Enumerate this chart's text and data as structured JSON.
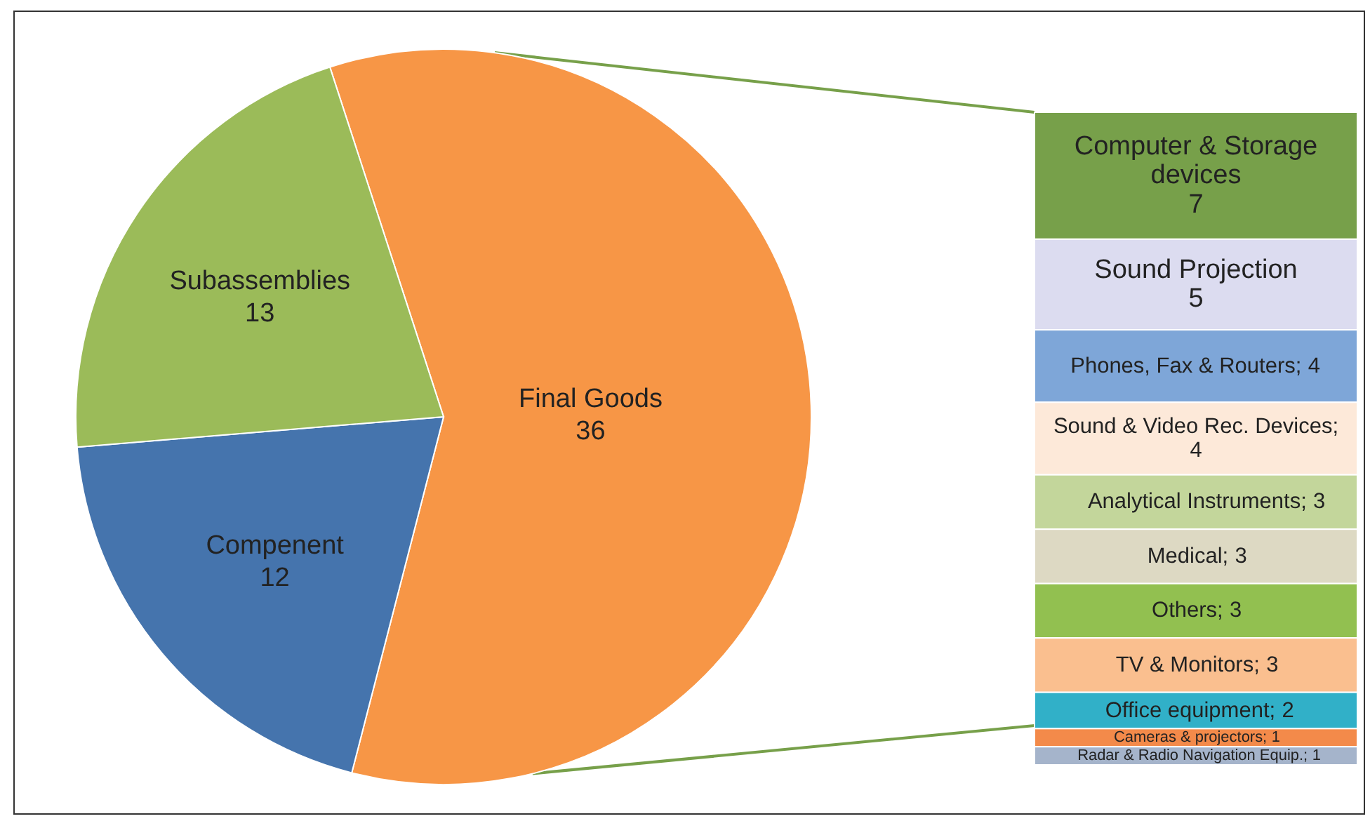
{
  "chart_data": [
    {
      "type": "pie",
      "categories": [
        "Final Goods",
        "Compenent",
        "Subassemblies"
      ],
      "values": [
        36,
        12,
        13
      ],
      "colors": [
        "#f79646",
        "#4574ad",
        "#9bbb59"
      ],
      "data_labels": true
    },
    {
      "type": "bar",
      "stacked": true,
      "categories": [
        null
      ],
      "data_labels": true,
      "series": [
        {
          "name": "Computer & Storage devices",
          "color": "#77a04a",
          "values": [
            7
          ]
        },
        {
          "name": "Sound Projection",
          "color": "#dcdcf0",
          "values": [
            5
          ]
        },
        {
          "name": "Phones, Fax & Routers;",
          "color": "#7ea6d8",
          "values": [
            4
          ]
        },
        {
          "name": "Sound & Video Rec. Devices;",
          "color": "#fde9d9",
          "values": [
            4
          ]
        },
        {
          "name": "Analytical Instruments;",
          "color": "#c3d69b",
          "values": [
            3
          ]
        },
        {
          "name": "Medical;",
          "color": "#ddd9c3",
          "values": [
            3
          ]
        },
        {
          "name": "Others;",
          "color": "#92c050",
          "values": [
            3
          ]
        },
        {
          "name": "TV & Monitors;",
          "color": "#fabf8f",
          "values": [
            3
          ]
        },
        {
          "name": "Office equipment;",
          "color": "#31b0c8",
          "values": [
            2
          ]
        },
        {
          "name": "Cameras & projectors;",
          "color": "#f38a4a",
          "values": [
            1
          ]
        },
        {
          "name": "Radar & Radio Navigation Equip.;",
          "color": "#a5b4cb",
          "values": [
            1
          ]
        }
      ]
    }
  ]
}
